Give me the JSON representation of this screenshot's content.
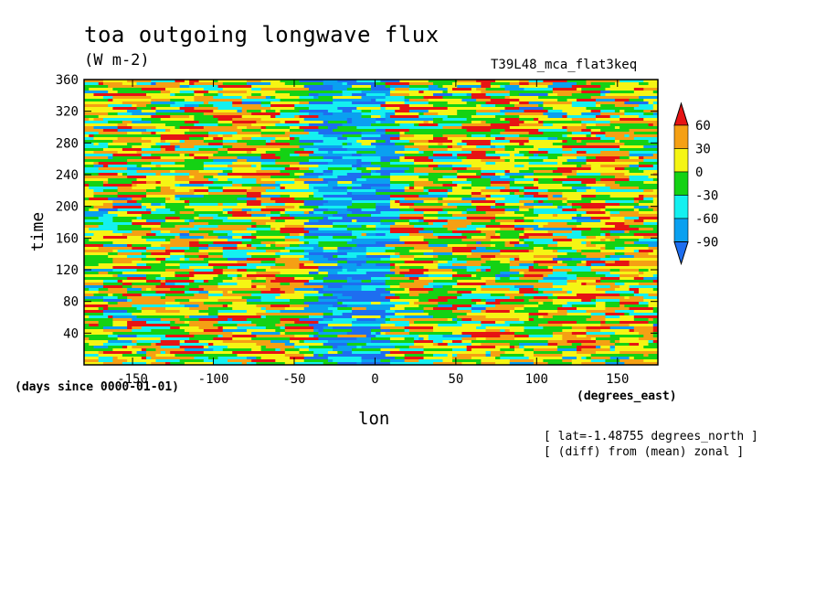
{
  "chart_data": {
    "type": "heatmap",
    "title": "toa outgoing longwave flux",
    "units": "(W m-2)",
    "run_label": "T39L48_mca_flat3keq",
    "xlabel": "lon",
    "ylabel": "time",
    "x_units_note": "(degrees_east)",
    "y_units_note": "(days since 0000-01-01)",
    "xlim": [
      -180,
      175
    ],
    "ylim": [
      0,
      360
    ],
    "x_ticks": [
      -150,
      -100,
      -50,
      0,
      50,
      100,
      150
    ],
    "x_tick_labels": [
      "-150",
      "-100",
      "-50",
      "0",
      "50",
      "100",
      "150"
    ],
    "y_ticks": [
      40,
      80,
      120,
      160,
      200,
      240,
      280,
      320,
      360
    ],
    "y_tick_labels": [
      "40",
      "80",
      "120",
      "160",
      "200",
      "240",
      "280",
      "320",
      "360"
    ],
    "colorbar": {
      "levels": [
        -90,
        -60,
        -30,
        0,
        30,
        60
      ],
      "level_labels": [
        "-90",
        "-60",
        "-30",
        "0",
        "30",
        "60"
      ],
      "colors": [
        "#1e6ef0",
        "#0aa0f0",
        "#14f0f0",
        "#14d214",
        "#f5f514",
        "#f5a014",
        "#e61414"
      ],
      "extend": "both"
    },
    "annotations": [
      "[ lat=-1.48755 degrees_north ]",
      "[ (diff) from (mean) zonal ]"
    ],
    "field_description_visible": "noisy zonal anomaly field, predominantly orange/yellow with blue-cyan band near lon -30 to 0"
  }
}
